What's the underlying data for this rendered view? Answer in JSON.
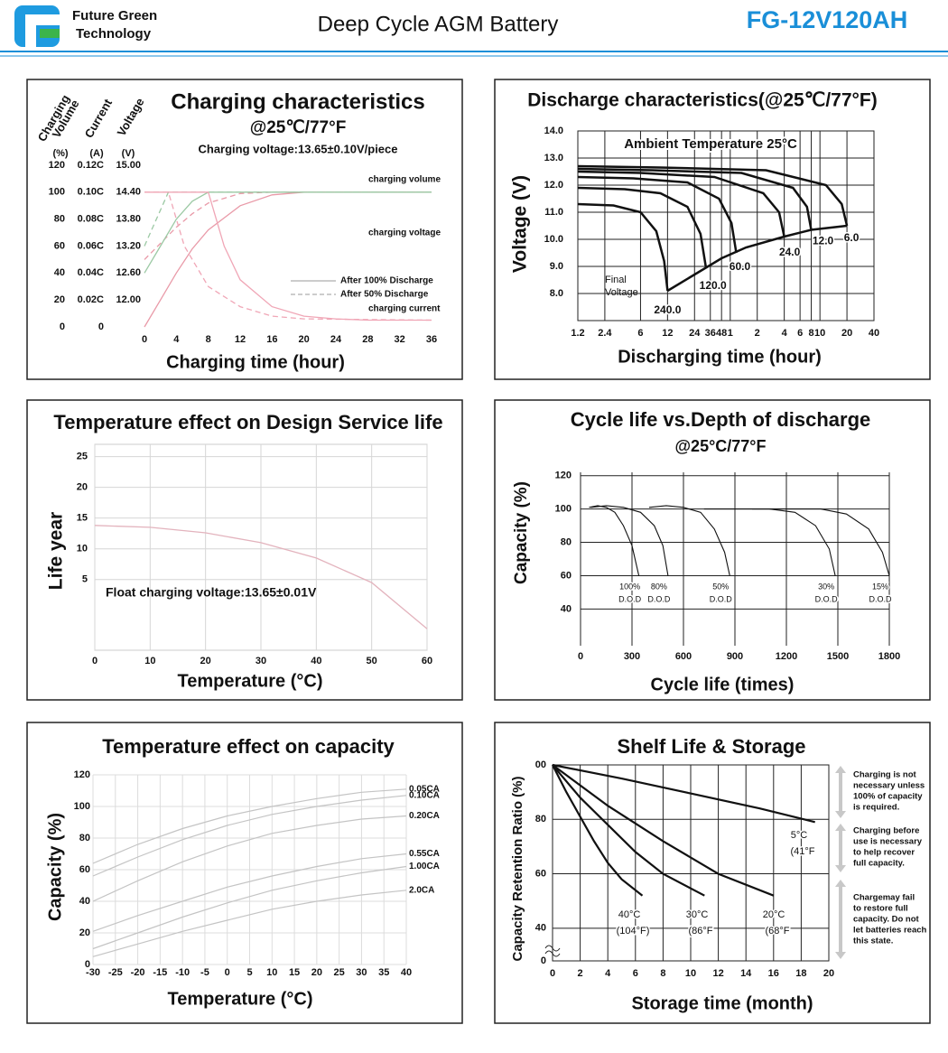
{
  "header": {
    "logo_text": [
      "Future Green",
      "Technology"
    ],
    "title": "Deep Cycle AGM Battery",
    "model": "FG-12V120AH"
  },
  "chart_data": [
    {
      "type": "line",
      "title": "Charging characteristics",
      "subtitle": "@25℃/77°F",
      "note": "Charging voltage:13.65±0.10V/piece",
      "xlabel": "Charging time (hour)",
      "ylabel": [
        "Charging",
        "Volume"
      ],
      "y2label": "Current",
      "y3label": "Voltage",
      "yunit": "(%)",
      "y2unit": "(A)",
      "y3unit": "(V)",
      "xlim": [
        0,
        36
      ],
      "xticks": [
        0,
        4,
        8,
        12,
        16,
        20,
        24,
        28,
        32,
        36
      ],
      "ylim": [
        0,
        120
      ],
      "yticks": [
        0,
        20,
        40,
        60,
        80,
        100,
        120
      ],
      "y2lim": [
        0,
        0.12
      ],
      "y2ticks": [
        0,
        {
          "value": 0.02,
          "label": "0.02C"
        },
        {
          "value": 0.04,
          "label": "0.04C"
        },
        {
          "value": 0.06,
          "label": "0.06C"
        },
        {
          "value": 0.08,
          "label": "0.08C"
        },
        {
          "value": 0.1,
          "label": "0.10C"
        },
        {
          "value": 0.12,
          "label": "0.12C"
        }
      ],
      "y3lim": [
        11.4,
        15.0
      ],
      "y3ticks": [
        {
          "value": 12,
          "label": "12.00"
        },
        {
          "value": 12.6,
          "label": "12.60"
        },
        {
          "value": 13.2,
          "label": "13.20"
        },
        {
          "value": 13.8,
          "label": "13.80"
        },
        {
          "value": 14.4,
          "label": "14.40"
        },
        {
          "value": 15,
          "label": "15.00"
        }
      ],
      "grid": false,
      "legend": [
        {
          "label": "After 100% Discharge",
          "dashed": false
        },
        {
          "label": "After  50%  Discharge",
          "dashed": true
        }
      ],
      "series": [
        {
          "name": "charging volume",
          "axis": "y",
          "color": "#e99aa8",
          "curves": [
            {
              "x": [
                0,
                2,
                4,
                6,
                8,
                12,
                16,
                20,
                24,
                28,
                32,
                36
              ],
              "values": [
                0,
                20,
                40,
                58,
                72,
                90,
                98,
                100,
                100,
                100,
                100,
                100
              ]
            },
            {
              "x": [
                0,
                2,
                4,
                6,
                8,
                12,
                16,
                20,
                36
              ],
              "values": [
                50,
                62,
                74,
                84,
                92,
                99,
                100,
                100,
                100
              ]
            }
          ]
        },
        {
          "name": "charging voltage",
          "axis": "y3",
          "color": "#9cc9a4",
          "curves": [
            {
              "x": [
                0,
                2,
                4,
                6,
                8,
                36
              ],
              "values": [
                12.6,
                13.2,
                13.8,
                14.2,
                14.4,
                14.4
              ]
            },
            {
              "x": [
                0,
                1,
                2,
                3,
                36
              ],
              "values": [
                13.2,
                13.6,
                14.0,
                14.4,
                14.4
              ]
            }
          ]
        },
        {
          "name": "charging current",
          "axis": "y2",
          "color": "#f0a6b6",
          "curves": [
            {
              "x": [
                0,
                8,
                10,
                12,
                16,
                20,
                24,
                28,
                36
              ],
              "values": [
                0.1,
                0.1,
                0.06,
                0.035,
                0.015,
                0.008,
                0.006,
                0.005,
                0.005
              ]
            },
            {
              "x": [
                0,
                3,
                5,
                8,
                12,
                16,
                20,
                36
              ],
              "values": [
                0.1,
                0.1,
                0.06,
                0.03,
                0.015,
                0.008,
                0.006,
                0.005
              ]
            }
          ]
        }
      ]
    },
    {
      "type": "line",
      "title": "Discharge characteristics(@25℃/77°F)",
      "xlabel": "Discharging time (hour)",
      "ylabel": "Voltage (V)",
      "annotation": "Ambient Temperature 25°C",
      "final_label": [
        "Final",
        "Voltage"
      ],
      "xlog": true,
      "xlim": [
        1.2,
        2400
      ],
      "xticks": [
        1.2,
        2.4,
        6,
        12,
        24,
        36,
        48,
        {
          "value": 60,
          "label": "1"
        },
        {
          "value": 120,
          "label": "2"
        },
        {
          "value": 240,
          "label": "4"
        },
        {
          "value": 360,
          "label": "6"
        },
        {
          "value": 480,
          "label": "8"
        },
        {
          "value": 600,
          "label": "10"
        },
        {
          "value": 1200,
          "label": "20"
        },
        {
          "value": 2400,
          "label": "40"
        }
      ],
      "ylim": [
        7,
        14
      ],
      "yticks": [
        {
          "value": 8,
          "label": "8.0"
        },
        {
          "value": 9,
          "label": "9.0"
        },
        {
          "value": 10,
          "label": "10.0"
        },
        {
          "value": 11,
          "label": "11.0"
        },
        {
          "value": 12,
          "label": "12.0"
        },
        {
          "value": 13,
          "label": "13.0"
        },
        {
          "value": 14,
          "label": "14.0"
        }
      ],
      "grid": true,
      "color": "#111111",
      "final_voltage_curve": {
        "x": [
          12,
          24,
          48,
          90,
          240,
          480,
          1200
        ],
        "values": [
          8.1,
          8.7,
          9.3,
          9.7,
          10.1,
          10.35,
          10.5
        ]
      },
      "series": [
        {
          "name": "240.0",
          "x": [
            1.2,
            3,
            6,
            9,
            11,
            12
          ],
          "values": [
            11.3,
            11.25,
            11.0,
            10.3,
            9.2,
            8.1
          ]
        },
        {
          "name": "120.0",
          "x": [
            1.2,
            4,
            10,
            20,
            28,
            32
          ],
          "values": [
            11.9,
            11.85,
            11.7,
            11.2,
            10.2,
            9.0
          ]
        },
        {
          "name": "60.0",
          "x": [
            1.2,
            5,
            20,
            45,
            62,
            70
          ],
          "values": [
            12.3,
            12.25,
            12.1,
            11.5,
            10.6,
            9.5
          ]
        },
        {
          "name": "24.0",
          "x": [
            1.2,
            6,
            40,
            140,
            210,
            240
          ],
          "values": [
            12.5,
            12.45,
            12.3,
            11.7,
            11.0,
            10.1
          ]
        },
        {
          "name": "12.0",
          "x": [
            1.2,
            8,
            80,
            300,
            430,
            480
          ],
          "values": [
            12.6,
            12.55,
            12.45,
            11.9,
            11.2,
            10.35
          ]
        },
        {
          "name": "6.0",
          "x": [
            1.2,
            10,
            150,
            700,
            1050,
            1200
          ],
          "values": [
            12.7,
            12.65,
            12.55,
            12.0,
            11.3,
            10.5
          ]
        }
      ]
    },
    {
      "type": "line",
      "title": "Temperature effect on Design Service life",
      "xlabel": "Temperature (°C)",
      "ylabel": "Life year",
      "annotation": "Float charging voltage:13.65±0.01V",
      "xlim": [
        0,
        60
      ],
      "xticks": [
        0,
        10,
        20,
        30,
        40,
        50,
        60
      ],
      "ylim": [
        -6.5,
        27
      ],
      "yticks": [
        5,
        10,
        15,
        20,
        25
      ],
      "grid": true,
      "color": "#e3b3bd",
      "x": [
        0,
        10,
        20,
        30,
        40,
        50,
        60
      ],
      "values": [
        13.8,
        13.5,
        12.6,
        11,
        8.5,
        4.5,
        -3
      ]
    },
    {
      "type": "line",
      "title": "Cycle life vs.Depth of discharge",
      "subtitle": "@25°C/77°F",
      "xlabel": "Cycle life (times)",
      "ylabel": "Capacity (%)",
      "xlim": [
        0,
        1800
      ],
      "xticks": [
        0,
        300,
        600,
        900,
        1200,
        1500,
        1800
      ],
      "ylim": [
        18,
        122
      ],
      "yticks": [
        40,
        60,
        80,
        100,
        120
      ],
      "grid": true,
      "label_suffix": "D.O.D",
      "series": [
        {
          "name": "100%",
          "color": "#111111",
          "x": [
            50,
            100,
            150,
            200,
            250,
            300,
            340
          ],
          "values": [
            101,
            102,
            101,
            98,
            90,
            78,
            60
          ]
        },
        {
          "name": "80%",
          "color": "#111111",
          "x": [
            60,
            150,
            250,
            350,
            430,
            480,
            510
          ],
          "values": [
            101,
            102,
            101,
            98,
            90,
            78,
            60
          ]
        },
        {
          "name": "50%",
          "color": "#111111",
          "x": [
            400,
            500,
            600,
            700,
            780,
            840,
            870
          ],
          "values": [
            101,
            102,
            101,
            98,
            88,
            74,
            60
          ]
        },
        {
          "name": "30%",
          "color": "#111111",
          "x": [
            720,
            900,
            1100,
            1250,
            1370,
            1450,
            1485
          ],
          "values": [
            100,
            100,
            100,
            98,
            90,
            76,
            60
          ]
        },
        {
          "name": "15%",
          "color": "#111111",
          "x": [
            1000,
            1200,
            1400,
            1550,
            1680,
            1760,
            1800
          ],
          "values": [
            100,
            100,
            100,
            97,
            88,
            74,
            60
          ]
        }
      ]
    },
    {
      "type": "line",
      "title": "Temperature effect on capacity",
      "xlabel": "Temperature (°C)",
      "ylabel": "Capacity (%)",
      "xlim": [
        -30,
        40
      ],
      "xticks": [
        -30,
        -25,
        -20,
        -15,
        -10,
        -5,
        0,
        5,
        10,
        15,
        20,
        25,
        30,
        35,
        40
      ],
      "ylim": [
        0,
        120
      ],
      "yticks": [
        0,
        20,
        40,
        60,
        80,
        100,
        120
      ],
      "grid": true,
      "x": [
        -30,
        -20,
        -10,
        0,
        10,
        20,
        30,
        40
      ],
      "series": [
        {
          "name": "0.05CA",
          "color": "#c4c4c4",
          "values": [
            64,
            76,
            86,
            94,
            100,
            105,
            109,
            111
          ]
        },
        {
          "name": "0.10CA",
          "color": "#c4c4c4",
          "values": [
            56,
            68,
            79,
            88,
            95,
            100,
            104,
            107
          ]
        },
        {
          "name": "0.20CA",
          "color": "#c4c4c4",
          "values": [
            40,
            53,
            65,
            75,
            83,
            88,
            92,
            94
          ]
        },
        {
          "name": "0.55CA",
          "color": "#c4c4c4",
          "values": [
            21,
            31,
            40,
            49,
            56,
            62,
            67,
            70
          ]
        },
        {
          "name": "1.00CA",
          "color": "#c4c4c4",
          "values": [
            10,
            20,
            30,
            39,
            47,
            53,
            58,
            62
          ]
        },
        {
          "name": "2.0CA",
          "color": "#c4c4c4",
          "values": [
            5,
            13,
            21,
            28,
            35,
            40,
            44,
            47
          ]
        }
      ]
    },
    {
      "type": "line",
      "title": "Shelf Life & Storage",
      "xlabel": "Storage time (month)",
      "ylabel": "Capacity Retention Ratio (%)",
      "xlim": [
        0,
        20
      ],
      "xticks": [
        0,
        2,
        4,
        6,
        8,
        10,
        12,
        14,
        16,
        18,
        20
      ],
      "ylim": [
        28,
        100
      ],
      "yticks": [
        {
          "value": 100,
          "label": "00"
        },
        80,
        60,
        40
      ],
      "axis_break_label": "0",
      "grid": true,
      "series": [
        {
          "name": "5°C",
          "note": "(41°F",
          "color": "#111111",
          "x": [
            0,
            5,
            10,
            15,
            19
          ],
          "values": [
            100,
            95,
            89.5,
            84,
            79
          ]
        },
        {
          "name": "20°C",
          "note": "(68°F",
          "color": "#111111",
          "x": [
            0,
            4,
            8,
            12,
            16
          ],
          "values": [
            100,
            85,
            72,
            60,
            52
          ]
        },
        {
          "name": "30°C",
          "note": "(86°F",
          "color": "#111111",
          "x": [
            0,
            2,
            4,
            6,
            8,
            11
          ],
          "values": [
            100,
            88,
            78,
            68,
            60,
            52
          ]
        },
        {
          "name": "40°C",
          "note": "(104°F)",
          "color": "#111111",
          "x": [
            0,
            1,
            2,
            3,
            4,
            5,
            6.5
          ],
          "values": [
            100,
            90,
            81,
            72,
            64,
            58,
            52
          ]
        }
      ],
      "notes": [
        [
          "Charging is not",
          "necessary unless",
          "100% of capacity",
          "is required."
        ],
        [
          "Charging before",
          "use is necessary",
          "to help recover",
          "full capacity."
        ],
        [
          "Chargemay fail",
          "to restore full",
          "capacity. Do not",
          "let batteries reach",
          "this state."
        ]
      ]
    }
  ]
}
